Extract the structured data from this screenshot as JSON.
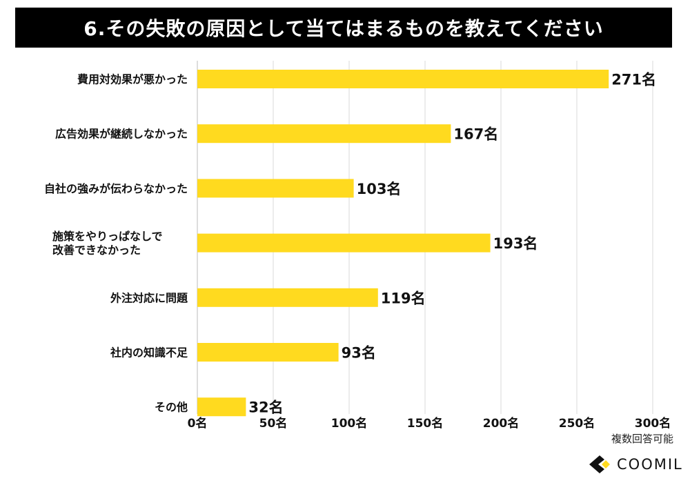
{
  "title": "6.その失敗の原因として当てはまるものを教えてください",
  "note": "複数回答可能",
  "logo_text": "COOMIL",
  "colors": {
    "bar": "#FFDA1F",
    "grid": "#d9d9d9",
    "title_bg": "#000000"
  },
  "chart_data": {
    "type": "bar",
    "orientation": "horizontal",
    "categories": [
      "費用対効果が悪かった",
      "広告効果が継続しなかった",
      "自社の強みが伝わらなかった",
      "施策をやりっぱなしで\n改善できなかった",
      "外注対応に問題",
      "社内の知識不足",
      "その他"
    ],
    "values": [
      271,
      167,
      103,
      193,
      119,
      93,
      32
    ],
    "value_labels": [
      "271名",
      "167名",
      "103名",
      "193名",
      "119名",
      "93名",
      "32名"
    ],
    "xlim": [
      0,
      300
    ],
    "ticks": [
      0,
      50,
      100,
      150,
      200,
      250,
      300
    ],
    "tick_labels": [
      "0名",
      "50名",
      "100名",
      "150名",
      "200名",
      "250名",
      "300名"
    ],
    "grid": true
  }
}
